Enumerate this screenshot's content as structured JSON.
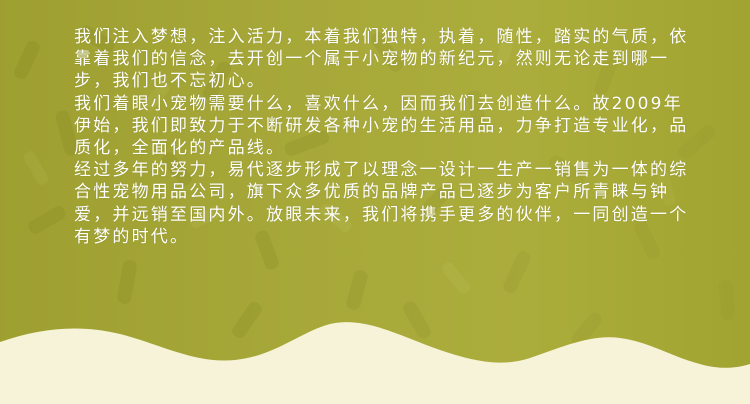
{
  "paragraphs": [
    "我们注入梦想，注入活力，本着我们独特，执着，随性，踏实的气质，依靠着我们的信念，去开创一个属于小宠物的新纪元，然则无论走到哪一步，我们也不忘初心。",
    "我们着眼小宠物需要什么，喜欢什么，因而我们去创造什么。故2009年伊始，我们即致力于不断研发各种小宠的生活用品，力争打造专业化，品质化，全面化的产品线。",
    "经过多年的努力，易代逐步形成了以理念一设计一生产一销售为一体的综合性宠物用品公司，旗下众多优质的品牌产品已逐步为客户所青睐与钟爱，并远销至国内外。放眼未来，我们将携手更多的伙伴，一同创造一个有梦的时代。"
  ],
  "colors": {
    "background_olive": "#a7a83a",
    "wave_cream": "#f7f3d8",
    "text": "#ffffff"
  }
}
